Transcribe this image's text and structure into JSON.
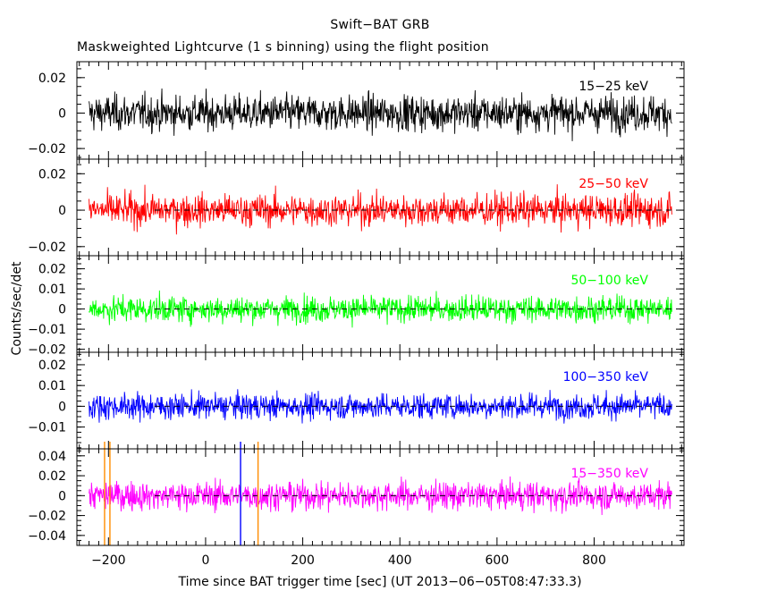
{
  "header": {
    "title": "Swift−BAT GRB",
    "subtitle": "Maskweighted Lightcurve (1 s binning) using the flight position"
  },
  "chart_data": {
    "type": "line",
    "xlabel": "Time since BAT trigger time [sec] (UT 2013−06−05T08:47:33.3)",
    "ylabel": "Counts/sec/det",
    "xlim": [
      -265,
      985
    ],
    "x_ticks": [
      -200,
      0,
      200,
      400,
      600,
      800
    ],
    "x_tick_labels": [
      "−200",
      "0",
      "200",
      "400",
      "600",
      "800"
    ],
    "time_range": [
      -240,
      960
    ],
    "bin_seconds": 1,
    "markers": [
      {
        "x": -208,
        "color": "#ff8c00"
      },
      {
        "x": -197,
        "color": "#ff8c00"
      },
      {
        "x": 72,
        "color": "#0000ff"
      },
      {
        "x": 108,
        "color": "#ff8c00"
      }
    ],
    "panels": [
      {
        "name": "15−25 keV",
        "color": "#000000",
        "ylim": [
          -0.026,
          0.029
        ],
        "ticks": [
          -0.02,
          0,
          0.02
        ],
        "tick_labels": [
          "−0.02",
          "0",
          "0.02"
        ],
        "scatter": 0.0085
      },
      {
        "name": "25−50 keV",
        "color": "#ff0000",
        "ylim": [
          -0.025,
          0.028
        ],
        "ticks": [
          -0.02,
          0,
          0.02
        ],
        "tick_labels": [
          "−0.02",
          "0",
          "0.02"
        ],
        "scatter": 0.0075
      },
      {
        "name": "50−100 keV",
        "color": "#00ff00",
        "ylim": [
          -0.0215,
          0.0265
        ],
        "ticks": [
          -0.02,
          -0.01,
          0,
          0.01,
          0.02
        ],
        "tick_labels": [
          "−0.02",
          "−0.01",
          "0",
          "0.01",
          "0.02"
        ],
        "scatter": 0.0055
      },
      {
        "name": "100−350 keV",
        "color": "#0000ff",
        "ylim": [
          -0.0205,
          0.026
        ],
        "ticks": [
          -0.01,
          0,
          0.01,
          0.02
        ],
        "tick_labels": [
          "−0.01",
          "0",
          "0.01",
          "0.02"
        ],
        "scatter": 0.0052
      },
      {
        "name": "15−350 keV",
        "color": "#ff00ff",
        "ylim": [
          -0.05,
          0.047
        ],
        "ticks": [
          -0.04,
          -0.02,
          0,
          0.02,
          0.04
        ],
        "tick_labels": [
          "−0.04",
          "−0.02",
          "0",
          "0.02",
          "0.04"
        ],
        "scatter": 0.012
      }
    ]
  }
}
